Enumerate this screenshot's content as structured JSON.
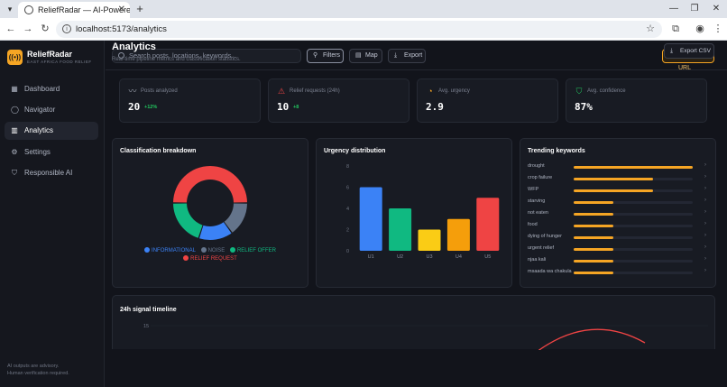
{
  "browser": {
    "tab_title": "ReliefRadar — AI-Powered Food",
    "url": "localhost:5173/analytics"
  },
  "brand": {
    "name": "ReliefRadar",
    "tagline": "EAST AFRICA FOOD RELIEF"
  },
  "sidebar": {
    "items": [
      {
        "label": "Dashboard",
        "icon": "grid-icon"
      },
      {
        "label": "Navigator",
        "icon": "compass-icon"
      },
      {
        "label": "Analytics",
        "icon": "bar-chart-icon",
        "active": true
      },
      {
        "label": "Settings",
        "icon": "gear-icon"
      },
      {
        "label": "Responsible AI",
        "icon": "shield-icon"
      }
    ],
    "disclaimer_line1": "AI outputs are advisory.",
    "disclaimer_line2": "Human verification required."
  },
  "topbar": {
    "search_placeholder": "Search posts, locations, keywords...",
    "filters_label": "Filters",
    "map_label": "Map",
    "export_label": "Export",
    "analyze_label": "Analyze URL"
  },
  "page": {
    "title": "Analytics",
    "subtitle": "Real-time pipeline metrics and classification statistics.",
    "export_csv_label": "Export CSV"
  },
  "stats": [
    {
      "label": "Posts analyzed",
      "value": "20",
      "delta": "+12%",
      "icon": "pulse-icon",
      "color": "#9aa0ad"
    },
    {
      "label": "Relief requests (24h)",
      "value": "10",
      "delta": "+8",
      "icon": "alert-triangle-icon",
      "color": "#ef4444"
    },
    {
      "label": "Avg. urgency",
      "value": "2.9",
      "delta": "",
      "icon": "gauge-icon",
      "color": "#f5a524"
    },
    {
      "label": "Avg. confidence",
      "value": "87%",
      "delta": "",
      "icon": "shield-check-icon",
      "color": "#22c55e"
    }
  ],
  "classification": {
    "title": "Classification breakdown",
    "legend": [
      {
        "label": "INFORMATIONAL",
        "color": "#3b82f6"
      },
      {
        "label": "NOISE",
        "color": "#64748b"
      },
      {
        "label": "RELIEF OFFER",
        "color": "#10b981"
      },
      {
        "label": "RELIEF REQUEST",
        "color": "#ef4444"
      }
    ]
  },
  "urgency": {
    "title": "Urgency distribution"
  },
  "keywords": {
    "title": "Trending keywords",
    "items": [
      {
        "label": "drought",
        "value": 1.0
      },
      {
        "label": "crop failure",
        "value": 0.67
      },
      {
        "label": "WFP",
        "value": 0.67
      },
      {
        "label": "starving",
        "value": 0.33
      },
      {
        "label": "not eaten",
        "value": 0.33
      },
      {
        "label": "food",
        "value": 0.33
      },
      {
        "label": "dying of hunger",
        "value": 0.33
      },
      {
        "label": "urgent relief",
        "value": 0.33
      },
      {
        "label": "njaa kali",
        "value": 0.33
      },
      {
        "label": "msaada wa chakula",
        "value": 0.33
      }
    ]
  },
  "timeline": {
    "title": "24h signal timeline",
    "y_tick": "15"
  },
  "chart_data": [
    {
      "type": "pie",
      "title": "Classification breakdown",
      "categories": [
        "RELIEF REQUEST",
        "NOISE",
        "INFORMATIONAL",
        "RELIEF OFFER"
      ],
      "values": [
        10,
        3,
        3,
        4
      ],
      "colors": [
        "#ef4444",
        "#64748b",
        "#3b82f6",
        "#10b981"
      ],
      "legend": "bottom"
    },
    {
      "type": "bar",
      "title": "Urgency distribution",
      "categories": [
        "U1",
        "U2",
        "U3",
        "U4",
        "U5"
      ],
      "values": [
        6,
        4,
        2,
        3,
        5
      ],
      "colors": [
        "#3b82f6",
        "#10b981",
        "#facc15",
        "#f59e0b",
        "#ef4444"
      ],
      "yticks": [
        "0",
        "2",
        "4",
        "6",
        "8"
      ],
      "ylim": [
        0,
        8
      ],
      "grid": false
    }
  ]
}
